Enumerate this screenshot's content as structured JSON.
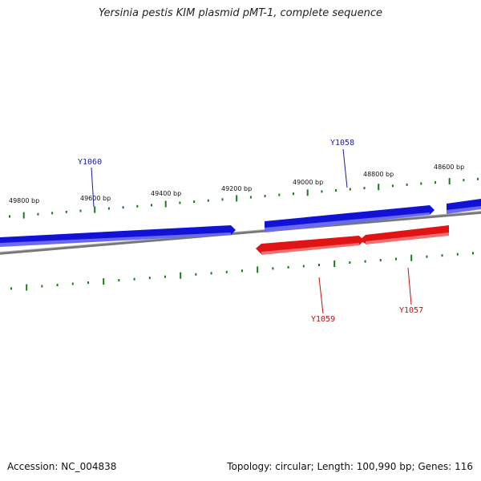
{
  "title": "Yersinia pestis KIM plasmid pMT-1, complete sequence",
  "footer": {
    "accession": "Accession: NC_004838",
    "summary": "Topology: circular; Length: 100,990 bp; Genes: 116"
  },
  "colors": {
    "forward_gene": "#1010d8",
    "reverse_gene": "#e01010",
    "backbone": "#808080",
    "tick": "#1a7a1a",
    "forward_label": "#1a1aa8",
    "reverse_label": "#c01010"
  },
  "ruler_labels": [
    "49800 bp",
    "49600 bp",
    "49400 bp",
    "49200 bp",
    "49000 bp",
    "48800 bp",
    "48600 bp"
  ],
  "genes": [
    {
      "name": "Y1060",
      "strand": "forward"
    },
    {
      "name": "Y1058",
      "strand": "forward"
    },
    {
      "name": "Y1059",
      "strand": "reverse"
    },
    {
      "name": "Y1057",
      "strand": "reverse"
    }
  ]
}
